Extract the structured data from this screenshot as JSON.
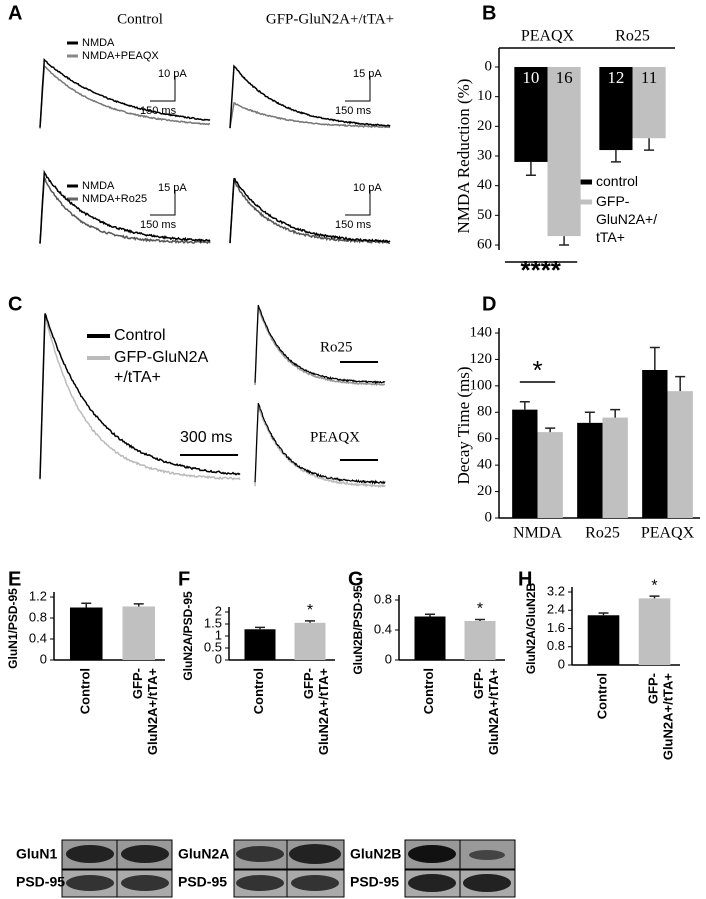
{
  "panel_labels": [
    "A",
    "B",
    "C",
    "D",
    "E",
    "F",
    "G",
    "H"
  ],
  "traces_a": {
    "col_titles": [
      "Control",
      "GFP-GluN2A+/tTA+"
    ],
    "legend_top": [
      "NMDA",
      "NMDA+PEAQX"
    ],
    "legend_bottom": [
      "NMDA",
      "NMDA+Ro25"
    ],
    "scales": [
      [
        "10 pA",
        "150 ms"
      ],
      [
        "15 pA",
        "150 ms"
      ],
      [
        "15 pA",
        "150 ms"
      ],
      [
        "10 pA",
        "150 ms"
      ]
    ]
  },
  "traces_c": {
    "legend": [
      "Control",
      "GFP-GluN2A +/tTA+"
    ],
    "scale": "300 ms",
    "insets": [
      "Ro25",
      "PEAQX"
    ]
  },
  "blots": [
    [
      "GluN1",
      "PSD-95"
    ],
    [
      "GluN2A",
      "PSD-95"
    ],
    [
      "GluN2B",
      "PSD-95"
    ]
  ],
  "chart_data": [
    {
      "type": "bar",
      "ylabel": "NMDA Reduction (%)",
      "categories": [
        "PEAQX",
        "Ro25"
      ],
      "inverted": true,
      "ylim": [
        0,
        60
      ],
      "yticks": [
        0,
        10,
        20,
        30,
        40,
        50,
        60
      ],
      "series": [
        {
          "name": "control",
          "color": "#000000",
          "values": [
            32,
            28
          ],
          "errors": [
            4.5,
            4
          ],
          "n": [
            10,
            12
          ]
        },
        {
          "name": "GFP-GluN2A+/tTA+",
          "color": "#c0c0c0",
          "values": [
            57,
            24
          ],
          "errors": [
            3,
            4
          ],
          "n": [
            16,
            11
          ]
        }
      ],
      "annotation": "****"
    },
    {
      "type": "bar",
      "ylabel": "Decay Time (ms)",
      "categories": [
        "NMDA",
        "Ro25",
        "PEAQX"
      ],
      "ylim": [
        0,
        140
      ],
      "yticks": [
        0,
        20,
        40,
        60,
        80,
        100,
        120,
        140
      ],
      "series": [
        {
          "color": "#000000",
          "values": [
            82,
            72,
            112
          ],
          "errors": [
            6,
            8,
            17
          ]
        },
        {
          "color": "#c0c0c0",
          "values": [
            65,
            76,
            96
          ],
          "errors": [
            3,
            6,
            11
          ]
        }
      ],
      "annotation": "*"
    },
    {
      "type": "bar",
      "ylabel": "GluN1/PSD-95",
      "categories": [
        "Control",
        "GFP-GluN2A+/tTA+"
      ],
      "colors": [
        "#000000",
        "#c0c0c0"
      ],
      "values": [
        1.0,
        1.02
      ],
      "errors": [
        0.08,
        0.05
      ],
      "ylim": [
        0,
        1.2
      ],
      "yticks": [
        0,
        0.4,
        0.8,
        1.2
      ]
    },
    {
      "type": "bar",
      "ylabel": "GluN2A/PSD-95",
      "categories": [
        "Control",
        "GFP-GluN2A+/tTA+"
      ],
      "colors": [
        "#000000",
        "#c0c0c0"
      ],
      "values": [
        1.28,
        1.55
      ],
      "errors": [
        0.08,
        0.08
      ],
      "ylim": [
        0,
        2
      ],
      "yticks": [
        0,
        0.5,
        1,
        1.5,
        2
      ],
      "annotation": "*"
    },
    {
      "type": "bar",
      "ylabel": "GluN2B/PSD-95",
      "categories": [
        "Control",
        "GFP-GluN2A+/tTA+"
      ],
      "colors": [
        "#000000",
        "#c0c0c0"
      ],
      "values": [
        0.58,
        0.52
      ],
      "errors": [
        0.03,
        0.02
      ],
      "ylim": [
        0,
        0.8
      ],
      "yticks": [
        0,
        0.4,
        0.8
      ],
      "annotation": "*"
    },
    {
      "type": "bar",
      "ylabel": "GluN2A/GluN2B",
      "categories": [
        "Control",
        "GFP-GluN2A+/tTA+"
      ],
      "colors": [
        "#000000",
        "#c0c0c0"
      ],
      "values": [
        2.18,
        2.92
      ],
      "errors": [
        0.1,
        0.1
      ],
      "ylim": [
        0,
        3.2
      ],
      "yticks": [
        0,
        0.8,
        1.6,
        2.4,
        3.2
      ],
      "annotation": "*"
    }
  ]
}
